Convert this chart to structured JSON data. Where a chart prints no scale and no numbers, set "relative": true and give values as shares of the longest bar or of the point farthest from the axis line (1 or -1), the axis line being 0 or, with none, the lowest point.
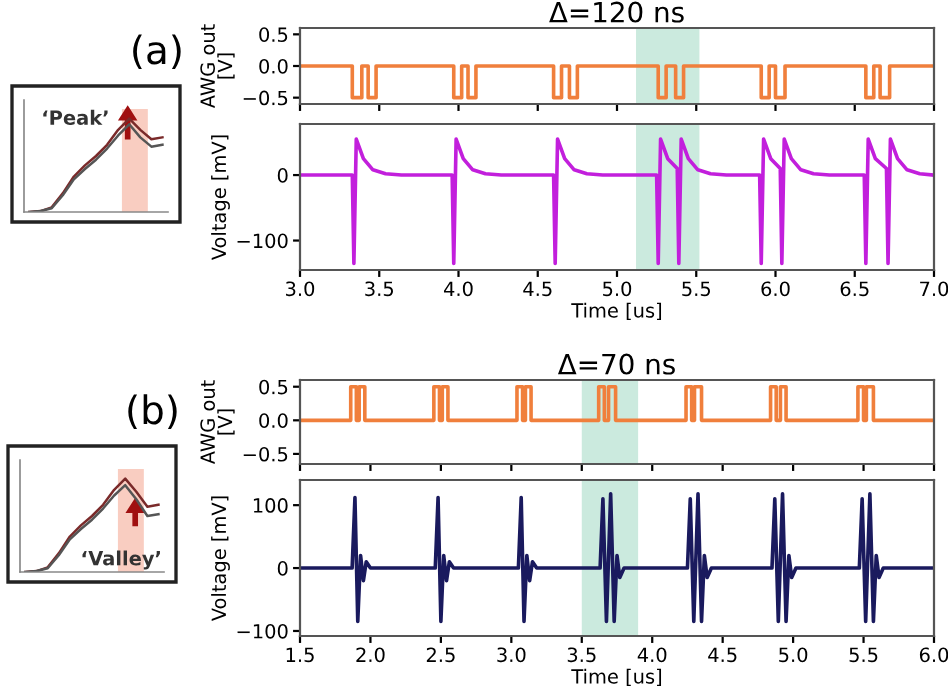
{
  "chart_data": [
    {
      "type": "line",
      "title": "(a)",
      "relative": true,
      "categories": [
        null,
        null,
        null,
        null,
        null,
        null,
        null,
        null,
        null,
        null,
        null,
        null,
        null
      ],
      "series": [
        {
          "color": "#7a2a2a",
          "values": [
            0.0,
            0.01,
            0.05,
            0.2,
            0.38,
            0.5,
            0.6,
            0.72,
            0.88,
            1.0,
            0.88,
            0.78,
            0.8
          ]
        },
        {
          "color": "#555555",
          "values": [
            0.0,
            0.01,
            0.04,
            0.18,
            0.35,
            0.46,
            0.56,
            0.68,
            0.82,
            0.94,
            0.8,
            0.7,
            0.72
          ]
        }
      ],
      "annotations": [
        "‘Peak’"
      ]
    },
    {
      "type": "line",
      "title": "Δ=120 ns",
      "ylabel": "AWG out\n[V]",
      "xlim": [
        3.0,
        7.0
      ],
      "ylim": [
        -0.6,
        0.6
      ],
      "yticks": [
        -0.5,
        {
          "value": 0,
          "label": "0.0"
        },
        0.5
      ],
      "xticks": [
        3,
        3.5,
        4,
        4.5,
        5,
        5.5,
        6,
        6.5,
        7
      ],
      "tick_labels": "y",
      "series": [
        {
          "color": "#f07f3c",
          "x": [
            3.0,
            3.33,
            3.33,
            3.39,
            3.39,
            3.43,
            3.43,
            3.48,
            3.48,
            3.97,
            3.97,
            4.02,
            4.02,
            4.06,
            4.06,
            4.11,
            4.11,
            4.6,
            4.6,
            4.65,
            4.65,
            4.7,
            4.7,
            4.75,
            4.75,
            5.26,
            5.26,
            5.31,
            5.31,
            5.37,
            5.37,
            5.42,
            5.42,
            5.91,
            5.91,
            5.96,
            5.96,
            6.0,
            6.0,
            6.06,
            6.06,
            6.57,
            6.57,
            6.62,
            6.62,
            6.66,
            6.66,
            6.72,
            6.72,
            7.0
          ],
          "values": [
            0,
            0,
            -0.5,
            -0.5,
            0,
            0,
            -0.5,
            -0.5,
            0,
            0,
            -0.5,
            -0.5,
            0,
            0,
            -0.5,
            -0.5,
            0,
            0,
            -0.5,
            -0.5,
            0,
            0,
            -0.5,
            -0.5,
            0,
            0,
            -0.5,
            -0.5,
            0,
            0,
            -0.5,
            -0.5,
            0,
            0,
            -0.5,
            -0.5,
            0,
            0,
            -0.5,
            -0.5,
            0,
            0,
            -0.5,
            -0.5,
            0,
            0,
            -0.5,
            -0.5,
            0,
            0
          ]
        }
      ],
      "bands": [
        {
          "axis": "x",
          "from": 5.12,
          "to": 5.52,
          "color": "#a8dcc8"
        }
      ]
    },
    {
      "type": "line",
      "xlabel": "Time [us]",
      "ylabel": "Voltage [mV]",
      "xlim": [
        3.0,
        7.0
      ],
      "ylim": [
        -145,
        78
      ],
      "yticks": [
        -100,
        0
      ],
      "xticks": [
        {
          "value": 3,
          "label": "3.0"
        },
        3.5,
        {
          "value": 4,
          "label": "4.0"
        },
        4.5,
        {
          "value": 5,
          "label": "5.0"
        },
        5.5,
        {
          "value": 6,
          "label": "6.0"
        },
        6.5,
        {
          "value": 7,
          "label": "7.0"
        }
      ],
      "series": [
        {
          "color": "#c21fdc",
          "x": [
            3.0,
            3.33,
            3.34,
            3.355,
            3.4,
            3.46,
            3.54,
            3.64,
            3.96,
            3.97,
            3.985,
            4.03,
            4.09,
            4.17,
            4.27,
            4.6,
            4.61,
            4.625,
            4.67,
            4.73,
            4.81,
            4.91,
            5.25,
            5.26,
            5.275,
            5.32,
            5.38,
            5.39,
            5.405,
            5.45,
            5.51,
            5.59,
            5.69,
            5.9,
            5.91,
            5.925,
            5.97,
            6.03,
            6.04,
            6.055,
            6.1,
            6.16,
            6.24,
            6.34,
            6.56,
            6.57,
            6.585,
            6.63,
            6.7,
            6.71,
            6.725,
            6.77,
            6.83,
            6.91,
            7.0
          ],
          "values": [
            0,
            0,
            -135,
            55,
            25,
            8,
            2,
            0,
            0,
            -135,
            55,
            25,
            8,
            2,
            0,
            0,
            -135,
            55,
            25,
            8,
            2,
            0,
            0,
            -135,
            55,
            25,
            10,
            -135,
            55,
            25,
            8,
            2,
            0,
            0,
            -135,
            55,
            25,
            10,
            -135,
            55,
            25,
            8,
            2,
            0,
            0,
            -135,
            55,
            25,
            10,
            -135,
            55,
            25,
            8,
            2,
            0
          ]
        }
      ],
      "bands": [
        {
          "axis": "x",
          "from": 5.12,
          "to": 5.52,
          "color": "#a8dcc8"
        }
      ]
    },
    {
      "type": "line",
      "title": "(b)",
      "relative": true,
      "categories": [
        null,
        null,
        null,
        null,
        null,
        null,
        null,
        null,
        null,
        null,
        null,
        null,
        null
      ],
      "series": [
        {
          "color": "#7a2a2a",
          "values": [
            0.0,
            0.01,
            0.05,
            0.2,
            0.38,
            0.5,
            0.6,
            0.72,
            0.88,
            1.0,
            0.86,
            0.7,
            0.72
          ]
        },
        {
          "color": "#555555",
          "values": [
            0.0,
            0.01,
            0.04,
            0.18,
            0.35,
            0.46,
            0.56,
            0.68,
            0.82,
            0.93,
            0.78,
            0.6,
            0.62
          ]
        }
      ],
      "annotations": [
        "‘Valley’"
      ]
    },
    {
      "type": "line",
      "title": "Δ=70 ns",
      "ylabel": "AWG out\n[V]",
      "xlim": [
        1.5,
        6.0
      ],
      "ylim": [
        -0.65,
        0.6
      ],
      "yticks": [
        -0.5,
        {
          "value": 0,
          "label": "0.0"
        },
        0.5
      ],
      "xticks": [
        1.5,
        2,
        2.5,
        3,
        3.5,
        4,
        4.5,
        5,
        5.5,
        6
      ],
      "tick_labels": "y",
      "series": [
        {
          "color": "#f07f3c",
          "x": [
            1.5,
            1.86,
            1.86,
            1.9,
            1.9,
            1.92,
            1.92,
            1.96,
            1.96,
            2.45,
            2.45,
            2.49,
            2.49,
            2.51,
            2.51,
            2.55,
            2.55,
            3.04,
            3.04,
            3.08,
            3.08,
            3.1,
            3.1,
            3.14,
            3.14,
            3.62,
            3.62,
            3.66,
            3.66,
            3.69,
            3.69,
            3.74,
            3.74,
            4.24,
            4.24,
            4.28,
            4.28,
            4.3,
            4.3,
            4.35,
            4.35,
            4.84,
            4.84,
            4.88,
            4.88,
            4.91,
            4.91,
            4.95,
            4.95,
            5.46,
            5.46,
            5.5,
            5.5,
            5.52,
            5.52,
            5.57,
            5.57,
            6.0
          ],
          "values": [
            0,
            0,
            0.5,
            0.5,
            0,
            0,
            0.5,
            0.5,
            0,
            0,
            0.5,
            0.5,
            0,
            0,
            0.5,
            0.5,
            0,
            0,
            0.5,
            0.5,
            0,
            0,
            0.5,
            0.5,
            0,
            0,
            0.5,
            0.5,
            0,
            0,
            0.5,
            0.5,
            0,
            0,
            0.5,
            0.5,
            0,
            0,
            0.5,
            0.5,
            0,
            0,
            0.5,
            0.5,
            0,
            0,
            0.5,
            0.5,
            0,
            0,
            0.5,
            0.5,
            0,
            0,
            0.5,
            0.5,
            0,
            0
          ]
        }
      ],
      "bands": [
        {
          "axis": "x",
          "from": 3.5,
          "to": 3.9,
          "color": "#a8dcc8"
        }
      ]
    },
    {
      "type": "line",
      "xlabel": "Time [us]",
      "ylabel": "Voltage [mV]",
      "xlim": [
        1.5,
        6.0
      ],
      "ylim": [
        -108,
        140
      ],
      "yticks": [
        -100,
        0,
        100
      ],
      "xticks": [
        1.5,
        {
          "value": 2,
          "label": "2.0"
        },
        2.5,
        {
          "value": 3,
          "label": "3.0"
        },
        3.5,
        {
          "value": 4,
          "label": "4.0"
        },
        4.5,
        {
          "value": 5,
          "label": "5.0"
        },
        5.5,
        {
          "value": 6,
          "label": "6.0"
        }
      ],
      "series": [
        {
          "color": "#1a1a5e",
          "x": [
            1.5,
            1.87,
            1.89,
            1.91,
            1.93,
            1.95,
            1.97,
            2.0,
            2.46,
            2.48,
            2.5,
            2.52,
            2.54,
            2.56,
            2.59,
            3.05,
            3.07,
            3.09,
            3.11,
            3.13,
            3.15,
            3.18,
            3.63,
            3.65,
            3.675,
            3.705,
            3.73,
            3.75,
            3.77,
            3.8,
            4.25,
            4.27,
            4.295,
            4.325,
            4.35,
            4.37,
            4.39,
            4.42,
            4.85,
            4.87,
            4.895,
            4.925,
            4.95,
            4.97,
            4.99,
            5.02,
            5.47,
            5.49,
            5.515,
            5.545,
            5.57,
            5.59,
            5.61,
            5.64,
            6.0
          ],
          "values": [
            0,
            0,
            112,
            -85,
            20,
            -20,
            10,
            0,
            0,
            112,
            -85,
            20,
            -20,
            10,
            0,
            0,
            112,
            -85,
            20,
            -20,
            10,
            0,
            0,
            110,
            -85,
            118,
            -85,
            20,
            -15,
            0,
            0,
            110,
            -85,
            118,
            -85,
            20,
            -15,
            0,
            0,
            110,
            -85,
            118,
            -85,
            20,
            -15,
            0,
            0,
            110,
            -85,
            118,
            -85,
            20,
            -15,
            0,
            0
          ]
        }
      ],
      "bands": [
        {
          "axis": "x",
          "from": 3.5,
          "to": 3.9,
          "color": "#a8dcc8"
        }
      ]
    }
  ]
}
